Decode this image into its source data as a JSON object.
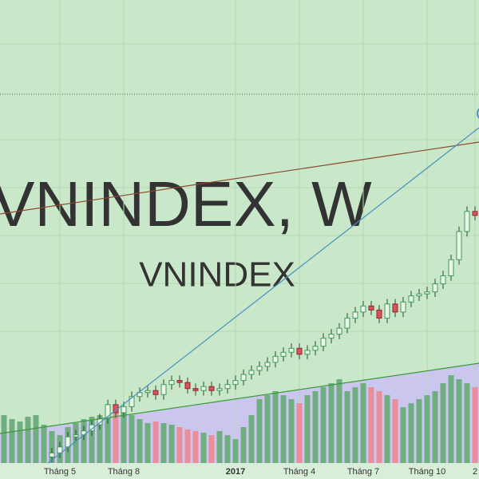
{
  "chart_data": {
    "type": "candlestick",
    "watermark": "VNINDEX, W",
    "watermark_sub": "VNINDEX",
    "categories": [
      null,
      null,
      null,
      null,
      null,
      null,
      null,
      "Tháng 5",
      null,
      null,
      null,
      null,
      null,
      null,
      null,
      "Tháng 8",
      null,
      null,
      null,
      null,
      null,
      null,
      null,
      null,
      null,
      null,
      null,
      null,
      null,
      "2017",
      null,
      null,
      null,
      null,
      null,
      null,
      null,
      "Tháng 4",
      null,
      null,
      null,
      null,
      null,
      null,
      null,
      "Tháng 7",
      null,
      null,
      null,
      null,
      null,
      null,
      null,
      "Tháng 10",
      null,
      null,
      null,
      null,
      null,
      "2"
    ],
    "open": [
      null,
      null,
      null,
      null,
      null,
      null,
      546,
      550,
      556,
      566,
      568,
      572,
      578,
      584,
      598,
      590,
      596,
      606,
      610,
      612,
      608,
      618,
      622,
      620,
      614,
      612,
      616,
      612,
      614,
      618,
      622,
      628,
      632,
      636,
      640,
      646,
      650,
      654,
      648,
      652,
      656,
      664,
      668,
      674,
      684,
      690,
      696,
      692,
      684,
      698,
      690,
      700,
      706,
      708,
      710,
      718,
      726,
      742,
      770,
      790
    ],
    "high": [
      null,
      null,
      null,
      null,
      null,
      null,
      555,
      561,
      571,
      573,
      577,
      583,
      589,
      603,
      603,
      601,
      611,
      615,
      617,
      617,
      623,
      627,
      627,
      625,
      619,
      621,
      621,
      619,
      623,
      627,
      633,
      637,
      641,
      645,
      651,
      655,
      659,
      659,
      657,
      661,
      669,
      673,
      679,
      689,
      695,
      701,
      701,
      697,
      703,
      703,
      705,
      711,
      713,
      715,
      723,
      731,
      747,
      775,
      795,
      795
    ],
    "low": [
      null,
      null,
      null,
      null,
      null,
      null,
      541,
      545,
      551,
      561,
      563,
      567,
      573,
      579,
      585,
      585,
      591,
      601,
      605,
      603,
      603,
      613,
      615,
      609,
      607,
      607,
      607,
      607,
      609,
      613,
      617,
      623,
      627,
      631,
      635,
      641,
      645,
      643,
      643,
      647,
      651,
      659,
      663,
      669,
      679,
      685,
      687,
      679,
      679,
      685,
      685,
      695,
      701,
      703,
      705,
      713,
      721,
      737,
      765,
      781
    ],
    "close": [
      null,
      null,
      null,
      null,
      null,
      null,
      550,
      556,
      566,
      568,
      572,
      578,
      584,
      598,
      590,
      596,
      606,
      610,
      612,
      608,
      618,
      622,
      620,
      614,
      612,
      616,
      612,
      614,
      618,
      622,
      628,
      632,
      636,
      640,
      646,
      650,
      654,
      648,
      652,
      656,
      664,
      668,
      674,
      684,
      690,
      696,
      692,
      684,
      698,
      690,
      700,
      706,
      708,
      710,
      718,
      726,
      742,
      770,
      790,
      786
    ],
    "volume": [
      60,
      55,
      52,
      58,
      60,
      48,
      40,
      35,
      45,
      50,
      55,
      58,
      60,
      65,
      70,
      68,
      60,
      55,
      50,
      52,
      50,
      48,
      45,
      42,
      40,
      38,
      35,
      40,
      35,
      30,
      45,
      60,
      80,
      85,
      90,
      85,
      80,
      75,
      85,
      90,
      95,
      100,
      105,
      90,
      95,
      100,
      95,
      90,
      85,
      80,
      70,
      75,
      80,
      85,
      90,
      100,
      110,
      105,
      100,
      95
    ],
    "ylim": [
      540,
      1000
    ],
    "y2lim": [
      0,
      580
    ],
    "up_color": "#3f9a5c",
    "down_color": "#d9535f",
    "volume_up_color": "#6fae7e",
    "volume_down_color": "#ec8d9c"
  }
}
